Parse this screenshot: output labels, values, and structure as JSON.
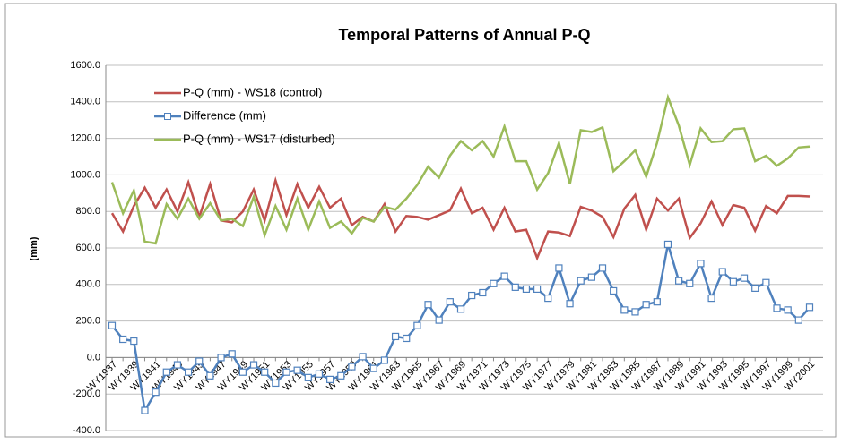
{
  "chart_data": {
    "type": "line",
    "title": "Temporal Patterns of Annual P-Q",
    "y_label": "(mm)",
    "categories": [
      "WY1937",
      null,
      "WY1939",
      null,
      "WY1941",
      null,
      "WY1943",
      null,
      "WY1945",
      null,
      "WY1947",
      null,
      "WY1949",
      null,
      "WY1951",
      null,
      "WY1953",
      null,
      "WY1955",
      null,
      "WY1957",
      null,
      "WY1959",
      null,
      "WY1961",
      null,
      "WY1963",
      null,
      "WY1965",
      null,
      "WY1967",
      null,
      "WY1969",
      null,
      "WY1971",
      null,
      "WY1973",
      null,
      "WY1975",
      null,
      "WY1977",
      null,
      "WY1979",
      null,
      "WY1981",
      null,
      "WY1983",
      null,
      "WY1985",
      null,
      "WY1987",
      null,
      "WY1989",
      null,
      "WY1991",
      null,
      "WY1993",
      null,
      "WY1995",
      null,
      "WY1997",
      null,
      "WY1999",
      null,
      "WY2001"
    ],
    "series": [
      {
        "name": "P-Q (mm) - WS18 (control)",
        "color": "#c0504d",
        "marker": false,
        "values": [
          790,
          690,
          830,
          930,
          820,
          920,
          800,
          960,
          770,
          950,
          750,
          740,
          800,
          920,
          750,
          970,
          780,
          950,
          820,
          935,
          820,
          870,
          725,
          770,
          745,
          840,
          690,
          775,
          770,
          755,
          780,
          805,
          925,
          790,
          820,
          700,
          820,
          690,
          700,
          545,
          690,
          685,
          665,
          825,
          805,
          770,
          660,
          815,
          890,
          700,
          870,
          805,
          870,
          655,
          735,
          855,
          725,
          835,
          820,
          695,
          830,
          790,
          885,
          885,
          882
        ]
      },
      {
        "name": "Difference (mm)",
        "color": "#4f81bd",
        "marker": true,
        "values": [
          175,
          100,
          90,
          -290,
          -190,
          -80,
          -40,
          -80,
          -20,
          -100,
          0,
          20,
          -80,
          -40,
          -80,
          -140,
          -80,
          -70,
          -110,
          -90,
          -120,
          -100,
          -50,
          5,
          -60,
          -15,
          115,
          105,
          175,
          290,
          205,
          305,
          265,
          340,
          355,
          405,
          445,
          385,
          375,
          375,
          325,
          490,
          295,
          420,
          440,
          490,
          365,
          260,
          250,
          290,
          305,
          620,
          420,
          405,
          515,
          325,
          470,
          415,
          435,
          380,
          410,
          270,
          260,
          205,
          275
        ]
      },
      {
        "name": "P-Q (mm) - WS17 (disturbed)",
        "color": "#9bbb59",
        "marker": false,
        "values": [
          960,
          790,
          915,
          635,
          625,
          840,
          760,
          870,
          760,
          845,
          750,
          760,
          720,
          880,
          670,
          830,
          700,
          870,
          700,
          855,
          710,
          745,
          680,
          765,
          745,
          825,
          810,
          870,
          945,
          1045,
          985,
          1105,
          1185,
          1135,
          1185,
          1100,
          1265,
          1075,
          1075,
          920,
          1010,
          1175,
          950,
          1245,
          1235,
          1260,
          1020,
          1075,
          1135,
          990,
          1175,
          1425,
          1270,
          1055,
          1255,
          1180,
          1185,
          1250,
          1255,
          1075,
          1105,
          1050,
          1090,
          1150,
          1155
        ]
      }
    ],
    "ylim": [
      -400,
      1600
    ],
    "yticks": [
      {
        "value": -400,
        "label": "-400.0"
      },
      {
        "value": -200,
        "label": "-200.0"
      },
      {
        "value": 0,
        "label": "0.0"
      },
      {
        "value": 200,
        "label": "200.0"
      },
      {
        "value": 400,
        "label": "400.0"
      },
      {
        "value": 600,
        "label": "600.0"
      },
      {
        "value": 800,
        "label": "800.0"
      },
      {
        "value": 1000,
        "label": "1000.0"
      },
      {
        "value": 1200,
        "label": "1200.0"
      },
      {
        "value": 1400,
        "label": "1400.0"
      },
      {
        "value": 1600,
        "label": "1600.0"
      }
    ],
    "grid": true,
    "legend": "upper left"
  }
}
